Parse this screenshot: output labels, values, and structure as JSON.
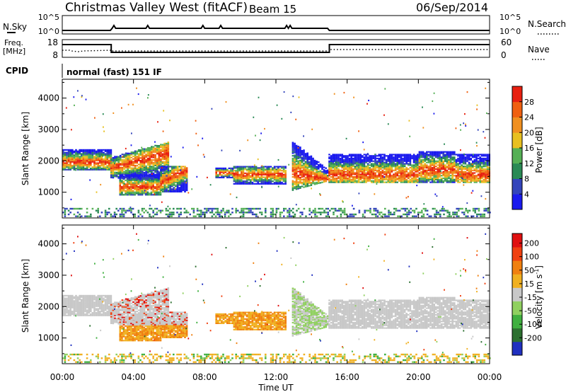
{
  "header": {
    "station": "Christmas Valley West (fitACF)",
    "beam": "Beam 15",
    "date": "06/Sep/2014"
  },
  "nsky_panel": {
    "label": "N.Sky",
    "left_ticks": [
      "10^5",
      "10^0"
    ],
    "right_ticks": [
      "10^5",
      "10^0"
    ],
    "right_label": "N.Search"
  },
  "freq_panel": {
    "label_line1": "Freq.",
    "label_line2": "[MHz]",
    "left_ticks": [
      "18",
      "8"
    ],
    "right_ticks": [
      "60",
      "0"
    ],
    "right_label": "Nave"
  },
  "cpid_panel": {
    "label": "CPID",
    "mode": "normal (fast) 151 IF"
  },
  "colors": {
    "power": [
      "#1a1aee",
      "#3344bb",
      "#2a8a55",
      "#55b055",
      "#e8c020",
      "#f09020",
      "#f06010",
      "#e82010"
    ],
    "velocity": [
      "#2030c0",
      "#2c7030",
      "#40b040",
      "#90d060",
      "#c8c8c8",
      "#f0b020",
      "#f08010",
      "#f04010",
      "#e01010"
    ]
  },
  "chart_data": [
    {
      "type": "heatmap",
      "parameter": "power",
      "ylabel": "Slant Range [km]",
      "yticks": [
        1000,
        2000,
        3000,
        4000
      ],
      "ylim": [
        180,
        4600
      ],
      "xlim_hours": [
        0,
        24
      ],
      "colorbar": {
        "label": "Power [dB]",
        "ticks": [
          4,
          8,
          12,
          16,
          20,
          24,
          28
        ],
        "range": [
          0,
          32
        ]
      },
      "bands": [
        {
          "t": [
            0.0,
            2.7
          ],
          "r_lo": 1700,
          "r_hi": 2350,
          "core": 1950
        },
        {
          "t": [
            2.7,
            6.0
          ],
          "r_lo": 1450,
          "r_hi": 2100,
          "core": 1750
        },
        {
          "t": [
            3.2,
            5.5
          ],
          "r_lo": 900,
          "r_hi": 1550,
          "core": 1150
        },
        {
          "t": [
            5.5,
            7.0
          ],
          "r_lo": 1000,
          "r_hi": 1800,
          "core": 1300
        },
        {
          "t": [
            8.6,
            9.6
          ],
          "r_lo": 1450,
          "r_hi": 1750,
          "core": 1600
        },
        {
          "t": [
            9.6,
            12.5
          ],
          "r_lo": 1250,
          "r_hi": 1800,
          "core": 1550
        },
        {
          "t": [
            12.9,
            14.9
          ],
          "r_lo": 1050,
          "r_hi": 2600,
          "core": 1600
        },
        {
          "t": [
            14.95,
            24.0
          ],
          "r_lo": 1300,
          "r_hi": 2200,
          "core": 1550
        }
      ]
    },
    {
      "type": "heatmap",
      "parameter": "velocity",
      "ylabel": "Slant Range [km]",
      "yticks": [
        1000,
        2000,
        3000,
        4000
      ],
      "ylim": [
        180,
        4600
      ],
      "xlim_hours": [
        0,
        24
      ],
      "colorbar": {
        "label": "Velocity [m s",
        "label_sup": "-1",
        "label_end": "]",
        "ticks": [
          200,
          100,
          50,
          15,
          -15,
          -50,
          -100,
          -200
        ]
      }
    }
  ],
  "xaxis": {
    "label": "Time UT",
    "tick_labels": [
      "00:00",
      "04:00",
      "08:00",
      "12:00",
      "16:00",
      "20:00",
      "00:00"
    ]
  }
}
